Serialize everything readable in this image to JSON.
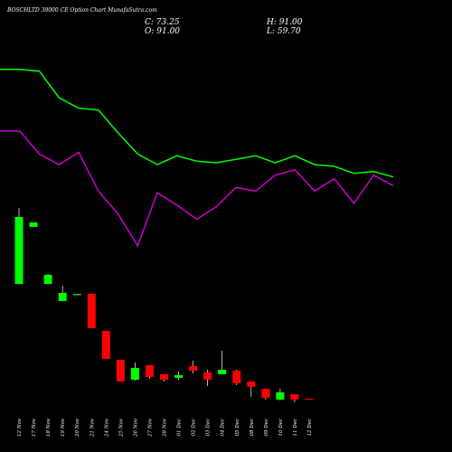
{
  "header": {
    "title": "BOSCHLTD 39000  CE Option Chart MunafaSutra.com",
    "close": "C: 73.25",
    "open": "O: 91.00",
    "high": "H: 91.00",
    "low": "L: 59.70"
  },
  "chart_data": {
    "type": "candlestick",
    "categories": [
      "12 Nov",
      "17 Nov",
      "18 Nov",
      "19 Nov",
      "20 Nov",
      "21 Nov",
      "24 Nov",
      "25 Nov",
      "26 Nov",
      "27 Nov",
      "28 Nov",
      "01 Dec",
      "02 Dec",
      "03 Dec",
      "04 Dec",
      "05 Dec",
      "08 Dec",
      "09 Dec",
      "10 Dec",
      "11 Dec",
      "12 Dec"
    ],
    "candles": [
      {
        "open": 80,
        "close": 450,
        "high": 500,
        "low": 78,
        "color": "#00ff00"
      },
      {
        "open": 395,
        "close": 420,
        "high": 420,
        "low": 395,
        "color": "#00ff00"
      },
      {
        "open": 80,
        "close": 130,
        "high": 135,
        "low": 78,
        "color": "#00ff00"
      },
      {
        "open": -15,
        "close": 30,
        "high": 70,
        "low": -15,
        "color": "#00ff00"
      },
      {
        "open": 22,
        "close": 24,
        "high": 24,
        "low": 22,
        "color": "#00ff00"
      },
      {
        "open": 25,
        "close": -165,
        "high": 25,
        "low": -165,
        "color": "#ff0000"
      },
      {
        "open": -180,
        "close": -335,
        "high": -180,
        "low": -335,
        "color": "#ff0000"
      },
      {
        "open": -340,
        "close": -460,
        "high": -340,
        "low": -460,
        "color": "#ff0000"
      },
      {
        "open": -450,
        "close": -385,
        "high": -355,
        "low": -455,
        "color": "#00ff00"
      },
      {
        "open": -370,
        "close": -435,
        "high": -370,
        "low": -445,
        "color": "#ff0000"
      },
      {
        "open": -420,
        "close": -450,
        "high": -420,
        "low": -460,
        "color": "#ff0000"
      },
      {
        "open": -440,
        "close": -425,
        "high": -405,
        "low": -450,
        "color": "#00ff00"
      },
      {
        "open": -375,
        "close": -400,
        "high": -345,
        "low": -415,
        "color": "#ff0000"
      },
      {
        "open": -410,
        "close": -450,
        "high": -395,
        "low": -485,
        "color": "#ff0000"
      },
      {
        "open": -420,
        "close": -395,
        "high": -290,
        "low": -420,
        "color": "#00ff00"
      },
      {
        "open": -400,
        "close": -470,
        "high": -395,
        "low": -480,
        "color": "#ff0000"
      },
      {
        "open": -460,
        "close": -490,
        "high": -460,
        "low": -545,
        "color": "#ff0000"
      },
      {
        "open": -500,
        "close": -550,
        "high": -500,
        "low": -560,
        "color": "#ff0000"
      },
      {
        "open": -560,
        "close": -520,
        "high": -500,
        "low": -565,
        "color": "#00ff00"
      },
      {
        "open": -530,
        "close": -560,
        "high": -530,
        "low": -575,
        "color": "#ff0000"
      },
      {
        "open": -555,
        "close": -560,
        "high": -555,
        "low": -560,
        "color": "#ff0000"
      }
    ],
    "moving_averages": [
      {
        "color": "#00ff00",
        "values": [
          91,
          91,
          90.5,
          83,
          80,
          79.5,
          73,
          67,
          64,
          66.5,
          65,
          64.5,
          65.5,
          66.5,
          64.5,
          66.5,
          64,
          63.5,
          61.5,
          62,
          60.5
        ]
      },
      {
        "color": "#cc00cc",
        "values": [
          73.5,
          73.5,
          67,
          64,
          67.5,
          56.5,
          50,
          41,
          56,
          52.5,
          48.5,
          52,
          57.5,
          56.5,
          61,
          62.5,
          56.5,
          60,
          53,
          61,
          58
        ]
      }
    ],
    "grid": false
  }
}
